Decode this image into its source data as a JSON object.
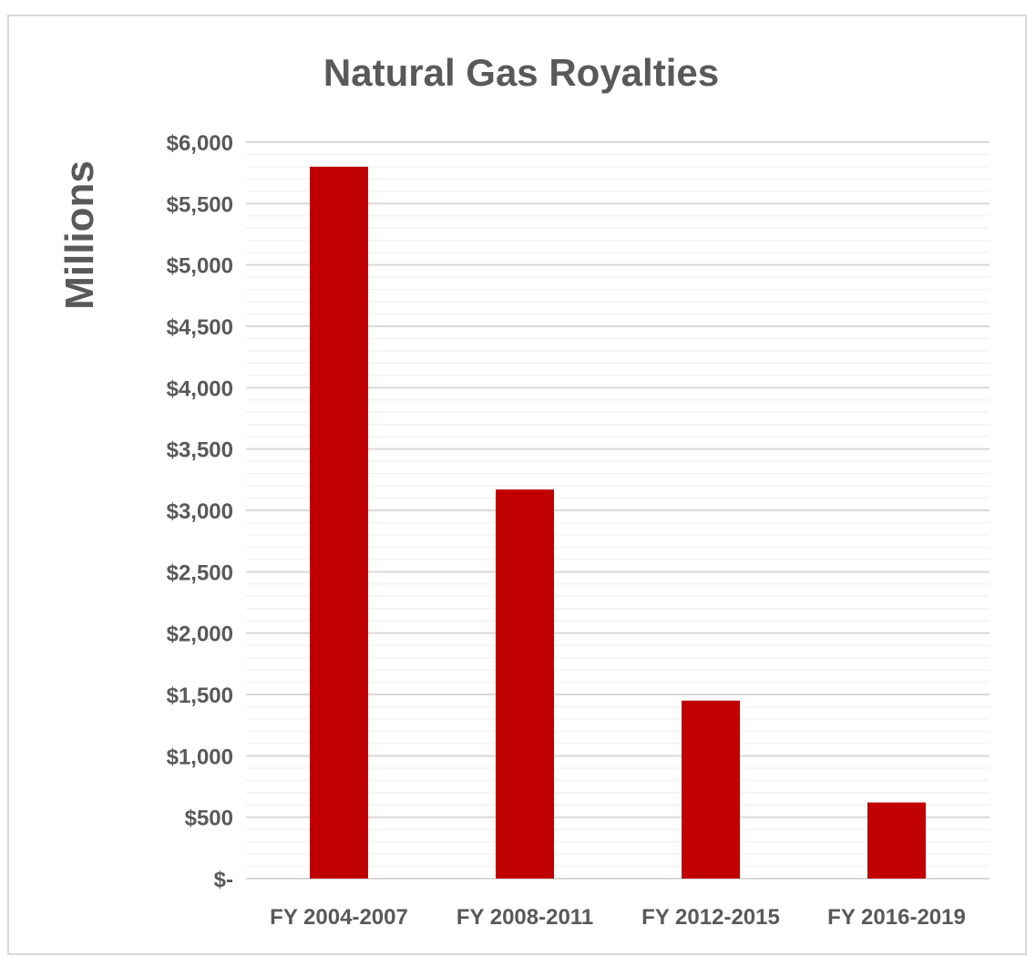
{
  "chart_data": {
    "type": "bar",
    "title": "Natural Gas Royalties",
    "xlabel": "",
    "ylabel": "Millions",
    "categories": [
      "FY 2004-2007",
      "FY 2008-2011",
      "FY 2012-2015",
      "FY 2016-2019"
    ],
    "series": [
      {
        "values": [
          5800,
          3170,
          1450,
          620
        ]
      }
    ],
    "ylim": [
      0,
      6000
    ],
    "y_ticks": [
      0,
      500,
      1000,
      1500,
      2000,
      2500,
      3000,
      3500,
      4000,
      4500,
      5000,
      5500,
      6000
    ],
    "y_tick_labels": [
      "$-",
      "$500",
      "$1,000",
      "$1,500",
      "$2,000",
      "$2,500",
      "$3,000",
      "$3,500",
      "$4,000",
      "$4,500",
      "$5,000",
      "$5,500",
      "$6,000"
    ],
    "minor_grid_step": 100,
    "grid": true,
    "legend": "none",
    "colors": {
      "bar": "#c00000",
      "text": "#595959",
      "major_grid": "#d9d9d9",
      "minor_grid": "#f2f2f2",
      "border": "#d9d9d9"
    }
  }
}
